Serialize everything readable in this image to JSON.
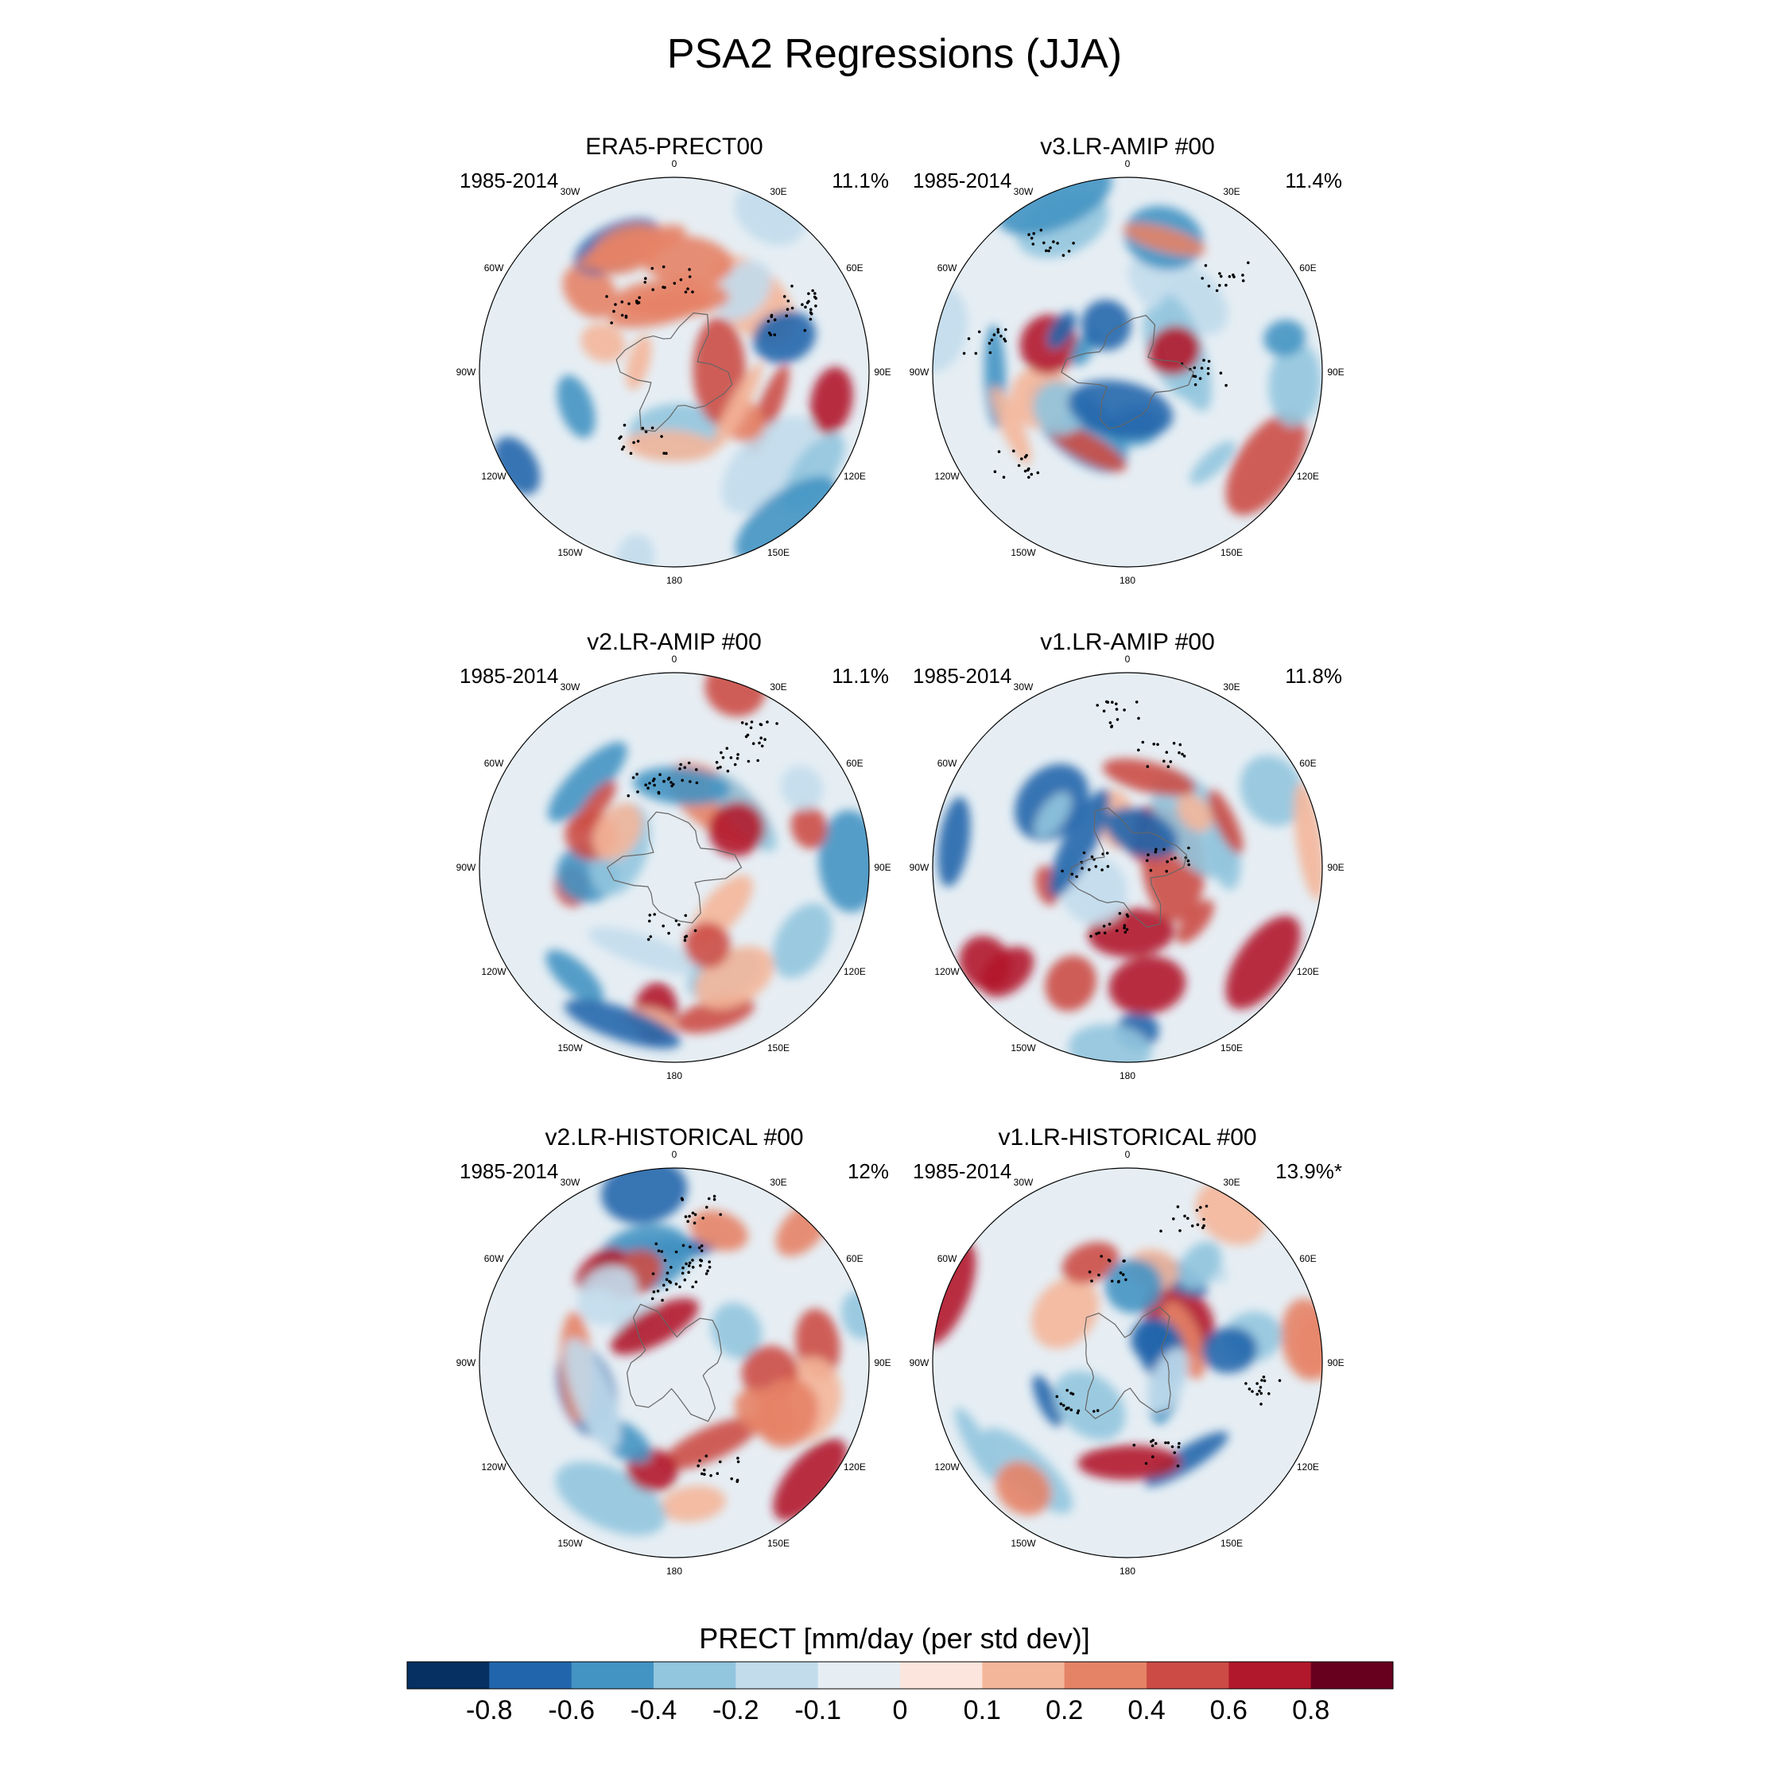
{
  "title": "PSA2 Regressions (JJA)",
  "chart_data": {
    "type": "contour-map",
    "projection": "south polar stereographic",
    "variable": "PRECT",
    "colorbar": {
      "title": "PRECT [mm/day (per std dev)]",
      "levels": [
        "-0.8",
        "-0.6",
        "-0.4",
        "-0.2",
        "-0.1",
        "0",
        "0.1",
        "0.2",
        "0.4",
        "0.6",
        "0.8"
      ],
      "colors": [
        "#053061",
        "#2166ac",
        "#4393c3",
        "#92c5de",
        "#c2dcec",
        "#e6eef4",
        "#fbe5dc",
        "#f4b69a",
        "#e58367",
        "#cc4c45",
        "#b2182b",
        "#67001f"
      ]
    },
    "longitude_labels": [
      "0",
      "30E",
      "60E",
      "90E",
      "120E",
      "150E",
      "180",
      "150W",
      "120W",
      "90W",
      "60W",
      "30W"
    ],
    "panels": [
      {
        "title": "ERA5-PRECT00",
        "period": "1985-2014",
        "variance": "11.1%"
      },
      {
        "title": "v3.LR-AMIP  #00",
        "period": "1985-2014",
        "variance": "11.4%"
      },
      {
        "title": "v2.LR-AMIP  #00",
        "period": "1985-2014",
        "variance": "11.1%"
      },
      {
        "title": "v1.LR-AMIP  #00",
        "period": "1985-2014",
        "variance": "11.8%"
      },
      {
        "title": "v2.LR-HISTORICAL  #00",
        "period": "1985-2014",
        "variance": "12%"
      },
      {
        "title": "v1.LR-HISTORICAL  #00",
        "period": "1985-2014",
        "variance": "13.9%*"
      }
    ]
  }
}
